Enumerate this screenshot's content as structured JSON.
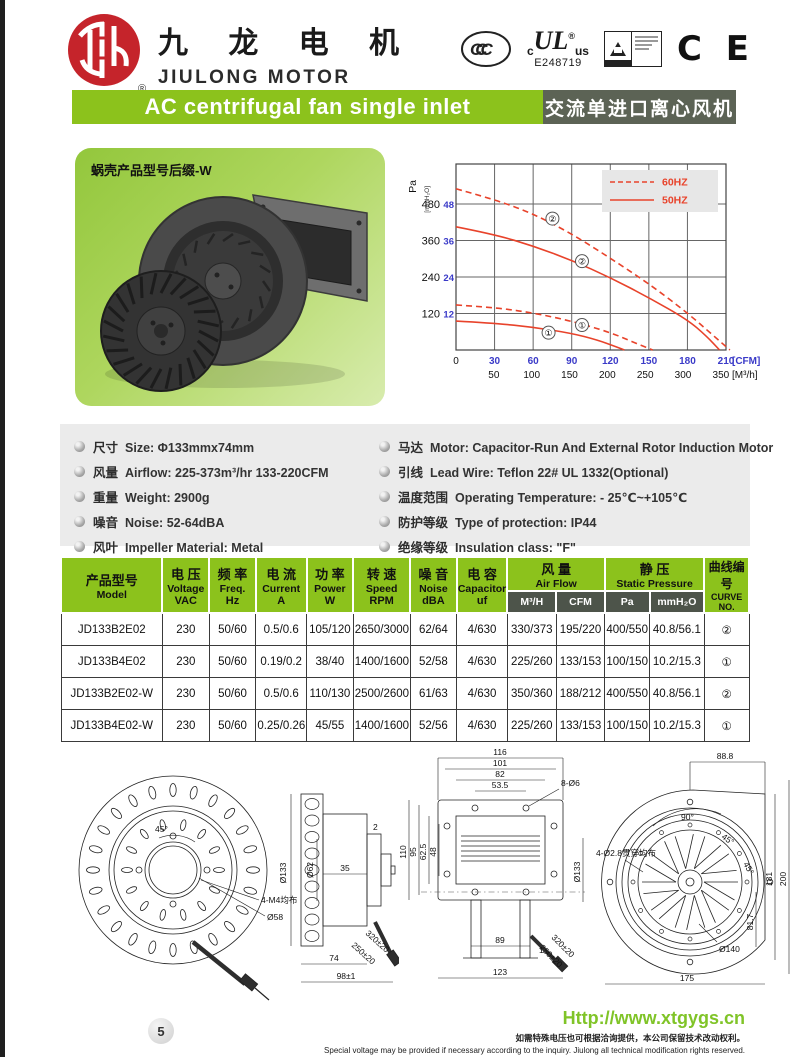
{
  "page": {
    "number": "5"
  },
  "header": {
    "company_cn": "九 龙 电 机",
    "company_en": "JIULONG MOTOR",
    "logo_reg": "®",
    "certs": {
      "ccc": "CCC",
      "ul_c": "c",
      "ul": "UL",
      "ul_us": "us",
      "ul_reg": "®",
      "ul_number": "E248719",
      "ce": "C E"
    }
  },
  "banner": {
    "title_en": "AC centrifugal fan single inlet",
    "title_cn": "交流单进口离心风机"
  },
  "product": {
    "label": "蜗壳产品型号后缀-W"
  },
  "chart_data": {
    "type": "line",
    "color": "#e8432b",
    "grid": true,
    "legend_position": "top-right",
    "legend": [
      {
        "name": "60HZ",
        "style": "dashed"
      },
      {
        "name": "50HZ",
        "style": "solid"
      }
    ],
    "x_axis": {
      "unit_primary": "[CFM]",
      "ticks_primary": [
        0,
        30,
        60,
        90,
        120,
        150,
        180,
        210
      ],
      "unit_secondary": "[M³/h]",
      "ticks_secondary": [
        50,
        100,
        150,
        200,
        250,
        300,
        350
      ],
      "range_cfm": [
        0,
        210
      ]
    },
    "y_axis": {
      "label_primary": "Pa",
      "ticks_primary": [
        120,
        240,
        360,
        480
      ],
      "label_secondary": "[mmH₂O]",
      "ticks_secondary": [
        12,
        24,
        36,
        48
      ],
      "range_pa": [
        0,
        600
      ]
    },
    "series": [
      {
        "name": "curve-2 60HZ",
        "curve_no": "②",
        "style": "dashed",
        "points_cfm_pa": [
          [
            0,
            530
          ],
          [
            30,
            495
          ],
          [
            60,
            448
          ],
          [
            90,
            382
          ],
          [
            120,
            302
          ],
          [
            150,
            218
          ],
          [
            180,
            122
          ],
          [
            200,
            48
          ],
          [
            213,
            0
          ]
        ]
      },
      {
        "name": "curve-2 50HZ",
        "curve_no": "②",
        "style": "solid",
        "points_cfm_pa": [
          [
            0,
            405
          ],
          [
            30,
            380
          ],
          [
            60,
            342
          ],
          [
            90,
            295
          ],
          [
            120,
            238
          ],
          [
            150,
            172
          ],
          [
            180,
            100
          ],
          [
            195,
            45
          ],
          [
            205,
            0
          ]
        ]
      },
      {
        "name": "curve-1 60HZ",
        "curve_no": "①",
        "style": "dashed",
        "points_cfm_pa": [
          [
            0,
            148
          ],
          [
            30,
            140
          ],
          [
            60,
            122
          ],
          [
            90,
            95
          ],
          [
            120,
            58
          ],
          [
            140,
            22
          ],
          [
            153,
            0
          ]
        ]
      },
      {
        "name": "curve-1 50HZ",
        "curve_no": "①",
        "style": "solid",
        "points_cfm_pa": [
          [
            0,
            95
          ],
          [
            30,
            88
          ],
          [
            60,
            75
          ],
          [
            90,
            55
          ],
          [
            110,
            33
          ],
          [
            125,
            10
          ],
          [
            131,
            0
          ]
        ]
      }
    ],
    "curve_labels": [
      {
        "text": "②",
        "cfm": 75,
        "pa": 432
      },
      {
        "text": "②",
        "cfm": 98,
        "pa": 292
      },
      {
        "text": "①",
        "cfm": 98,
        "pa": 82
      },
      {
        "text": "①",
        "cfm": 72,
        "pa": 57
      }
    ]
  },
  "specs": {
    "left": [
      {
        "cn": "尺寸",
        "en": "Size: Φ133mmx74mm"
      },
      {
        "cn": "风量",
        "en": "Airflow: 225-373m³/hr  133-220CFM"
      },
      {
        "cn": "重量",
        "en": "Weight: 2900g"
      },
      {
        "cn": "噪音",
        "en": "Noise: 52-64dBA"
      },
      {
        "cn": "风叶",
        "en": "Impeller Material: Metal"
      }
    ],
    "right": [
      {
        "cn": "马达",
        "en": "Motor: Capacitor-Run And External Rotor Induction Motor"
      },
      {
        "cn": "引线",
        "en": "Lead Wire: Teflon  22#  UL 1332(Optional)"
      },
      {
        "cn": "温度范围",
        "en": "Operating Temperature: - 25℃~+105℃"
      },
      {
        "cn": "防护等级",
        "en": "Type of protection: IP44"
      },
      {
        "cn": "绝缘等级",
        "en": "Insulation class: \"F\""
      }
    ]
  },
  "table": {
    "headers": {
      "model": {
        "cn": "产品型号",
        "en": "Model"
      },
      "cols": [
        {
          "cn": "电 压",
          "en": "Voltage",
          "unit": "VAC"
        },
        {
          "cn": "频 率",
          "en": "Freq.",
          "unit": "Hz"
        },
        {
          "cn": "电 流",
          "en": "Current",
          "unit": "A"
        },
        {
          "cn": "功 率",
          "en": "Power",
          "unit": "W"
        },
        {
          "cn": "转 速",
          "en": "Speed",
          "unit": "RPM"
        },
        {
          "cn": "噪 音",
          "en": "Noise",
          "unit": "dBA"
        },
        {
          "cn": "电 容",
          "en": "Capacitor",
          "unit": "uf"
        }
      ],
      "airflow": {
        "cn": "风 量",
        "en": "Air Flow",
        "subs": [
          "M³/H",
          "CFM"
        ]
      },
      "static": {
        "cn": "静 压",
        "en": "Static Pressure",
        "subs": [
          "Pa",
          "mmH₂O"
        ]
      },
      "curve": {
        "cn": "曲线编号",
        "en": "CURVE NO."
      }
    },
    "rows": [
      [
        "JD133B2E02",
        "230",
        "50/60",
        "0.5/0.6",
        "105/120",
        "2650/3000",
        "62/64",
        "4/630",
        "330/373",
        "195/220",
        "400/550",
        "40.8/56.1",
        "②"
      ],
      [
        "JD133B4E02",
        "230",
        "50/60",
        "0.19/0.2",
        "38/40",
        "1400/1600",
        "52/58",
        "4/630",
        "225/260",
        "133/153",
        "100/150",
        "10.2/15.3",
        "①"
      ],
      [
        "JD133B2E02-W",
        "230",
        "50/60",
        "0.5/0.6",
        "110/130",
        "2500/2600",
        "61/63",
        "4/630",
        "350/360",
        "188/212",
        "400/550",
        "40.8/56.1",
        "②"
      ],
      [
        "JD133B4E02-W",
        "230",
        "50/60",
        "0.25/0.26",
        "45/55",
        "1400/1600",
        "52/56",
        "4/630",
        "225/260",
        "133/153",
        "100/150",
        "10.2/15.3",
        "①"
      ]
    ]
  },
  "drawings": {
    "front": {
      "angle45": "45°",
      "holes": "4-M4均布",
      "hub": "Ø58"
    },
    "side": {
      "dia133": "Ø133",
      "dia62": "Ø62",
      "d35": "35",
      "d2": "2",
      "d74": "74",
      "d98": "98±1",
      "wire1": "320±20",
      "wire2": "250±20"
    },
    "outlet": {
      "w116": "116",
      "w101": "101",
      "w82": "82",
      "w53": "53.5",
      "h110": "110",
      "h95": "95",
      "h62": "62.5",
      "h48": "48",
      "holes8": "8-Ø6",
      "dia133": "Ø133",
      "w89": "89",
      "d1": "1",
      "w123": "123",
      "wire1": "250±20",
      "wire2": "320±20"
    },
    "volute": {
      "w88": "88.8",
      "a90": "90°",
      "a45a": "45°",
      "a45b": "45°",
      "h181": "181",
      "h200": "200",
      "h81": "81.7",
      "dia140": "Ø140",
      "w175": "175",
      "holes4": "4-Ø2.8贯穿均布"
    }
  },
  "footer": {
    "url": "Http://www.xtgygs.cn",
    "note_cn": "如需特殊电压也可根据洽询提供，本公司保留技术改动权利。",
    "note_en": "Special voltage may be provided if necessary according to the inquiry. Jiulong all technical modification rights reserved."
  }
}
